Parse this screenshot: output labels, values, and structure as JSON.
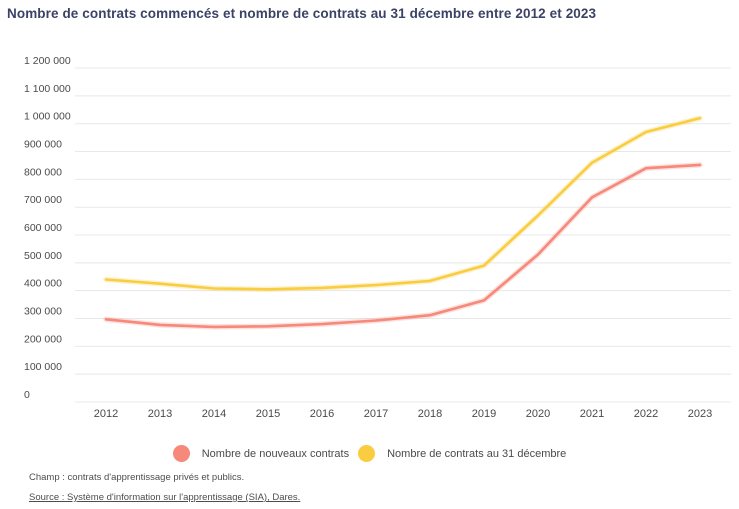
{
  "title": "Nombre de contrats commencés et nombre de contrats au 31 décembre entre 2012 et 2023",
  "chart_data": {
    "type": "line",
    "x": [
      "2012",
      "2013",
      "2014",
      "2015",
      "2016",
      "2017",
      "2018",
      "2019",
      "2020",
      "2021",
      "2022",
      "2023"
    ],
    "series": [
      {
        "name": "Nombre de nouveaux contrats",
        "color": "#F6897A",
        "values": [
          297000,
          277000,
          270000,
          272000,
          280000,
          293000,
          312000,
          365000,
          530000,
          735000,
          840000,
          852000
        ]
      },
      {
        "name": "Nombre de contrats au 31 décembre",
        "color": "#F9CD3F",
        "values": [
          440000,
          425000,
          408000,
          405000,
          410000,
          420000,
          435000,
          490000,
          670000,
          860000,
          970000,
          1020000
        ]
      }
    ],
    "ylim": [
      0,
      1200000
    ],
    "ytick_step": 100000,
    "ytick_labels": [
      "0",
      "100 000",
      "200 000",
      "300 000",
      "400 000",
      "500 000",
      "600 000",
      "700 000",
      "800 000",
      "900 000",
      "1 000 000",
      "1 100 000",
      "1 200 000"
    ],
    "xlabel": "",
    "ylabel": "",
    "grid": "horizontal",
    "legend_position": "bottom-center"
  },
  "footer": {
    "champ": "Champ : contrats d'apprentissage privés et publics.",
    "source": "Source : Système d'information sur l'apprentissage (SIA), Dares."
  },
  "colors": {
    "title": "#3B4266",
    "axis_text": "#4A4A4A",
    "gridline": "#E8E8E8",
    "background": "#FFFFFF"
  }
}
